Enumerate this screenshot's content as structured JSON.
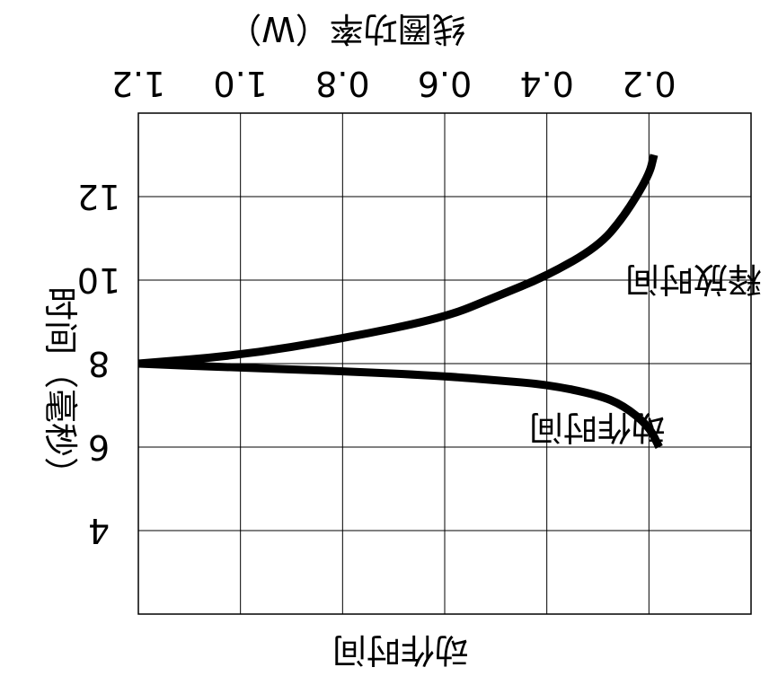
{
  "chart_data": {
    "type": "line",
    "title": "",
    "xlabel": "线圈功率（W）",
    "ylabel": "时间（毫秒）",
    "xaxis_position": "top",
    "xlim": [
      0.0,
      1.2
    ],
    "ylim": [
      2,
      14
    ],
    "x_ticks": [
      "0.2",
      "0.4",
      "0.6",
      "0.8",
      "1.0",
      "1.2"
    ],
    "y_ticks": [
      "4",
      "6",
      "8",
      "10",
      "12"
    ],
    "grid": true,
    "orientation_note": "image is rotated 180 degrees",
    "series": [
      {
        "name": "释放时间",
        "x": [
          0.18,
          0.2,
          0.25,
          0.3,
          0.4,
          0.5,
          0.6,
          0.8,
          1.0,
          1.2
        ],
        "y": [
          6.0,
          6.5,
          7.0,
          7.25,
          7.5,
          7.6,
          7.7,
          7.82,
          7.9,
          8.0
        ]
      },
      {
        "name": "动作时间",
        "x": [
          0.19,
          0.2,
          0.25,
          0.3,
          0.4,
          0.5,
          0.6,
          0.8,
          1.0,
          1.2
        ],
        "y": [
          13.0,
          12.5,
          11.5,
          10.8,
          10.1,
          9.6,
          9.1,
          8.6,
          8.2,
          8.0
        ]
      }
    ],
    "annotations": [
      {
        "text": "释放时间",
        "anchor_series": "释放时间"
      },
      {
        "text": "动作时间",
        "anchor_series": "动作时间"
      }
    ],
    "bottom_text": "动作时间"
  },
  "style": {
    "line_color": "#000000",
    "grid_color": "#000000",
    "background": "#ffffff"
  }
}
